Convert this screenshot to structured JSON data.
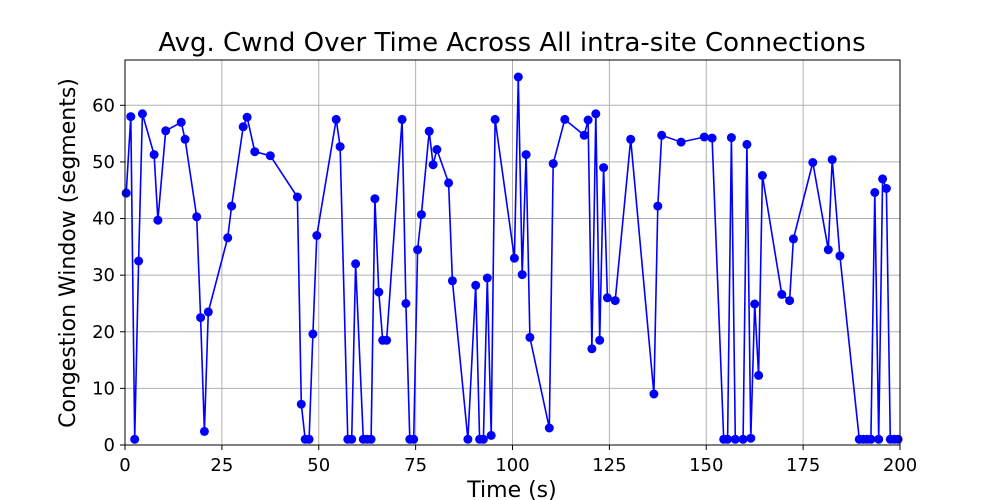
{
  "chart_data": {
    "type": "line",
    "title": "Avg. Cwnd Over Time Across All intra-site Connections",
    "xlabel": "Time (s)",
    "ylabel": "Congestion Window (segments)",
    "xlim": [
      0,
      200
    ],
    "ylim": [
      0,
      68
    ],
    "xticks": [
      0,
      25,
      50,
      75,
      100,
      125,
      150,
      175,
      200
    ],
    "yticks": [
      0,
      10,
      20,
      30,
      40,
      50,
      60
    ],
    "grid": true,
    "color": "#0000ff",
    "marker": "circle",
    "x": [
      0.3,
      1.5,
      2.5,
      3.5,
      4.5,
      7.5,
      8.5,
      10.5,
      14.5,
      15.5,
      18.5,
      19.5,
      20.5,
      21.5,
      26.5,
      27.5,
      30.5,
      31.5,
      33.5,
      37.5,
      44.5,
      45.5,
      46.5,
      47.5,
      48.5,
      49.5,
      54.5,
      55.5,
      57.5,
      58.5,
      59.5,
      61.5,
      62.5,
      63.5,
      64.5,
      65.5,
      66.5,
      67.5,
      71.5,
      72.5,
      73.5,
      74.5,
      75.5,
      76.5,
      78.5,
      79.5,
      80.5,
      83.5,
      84.5,
      88.5,
      90.5,
      91.5,
      92.5,
      93.5,
      94.5,
      95.5,
      100.5,
      101.5,
      102.5,
      103.5,
      104.5,
      109.5,
      110.5,
      113.5,
      118.5,
      119.5,
      120.5,
      121.5,
      122.5,
      123.5,
      124.5,
      126.5,
      130.5,
      136.5,
      137.5,
      138.5,
      143.5,
      149.5,
      151.5,
      154.5,
      155.5,
      156.5,
      157.5,
      159.5,
      160.5,
      161.5,
      162.5,
      163.5,
      164.5,
      169.5,
      171.5,
      172.5,
      177.5,
      181.5,
      182.5,
      184.5,
      189.5,
      190.5,
      191.5,
      192.5,
      193.5,
      194.5,
      195.5,
      196.5,
      197.5,
      198.5,
      199.5
    ],
    "y": [
      44.5,
      58,
      1,
      32.5,
      58.5,
      51.3,
      39.7,
      55.5,
      57,
      54,
      40.3,
      22.5,
      2.4,
      23.5,
      36.6,
      42.2,
      56.2,
      57.9,
      51.8,
      51.1,
      43.8,
      7.2,
      1,
      1,
      19.6,
      37,
      57.5,
      52.7,
      1,
      1,
      32,
      1,
      1,
      1,
      43.5,
      27,
      18.5,
      18.5,
      57.5,
      25,
      1,
      1,
      34.5,
      40.7,
      55.4,
      49.5,
      52.2,
      46.3,
      29,
      1,
      28.2,
      1,
      1,
      29.5,
      1.7,
      57.5,
      33,
      65,
      30.1,
      51.3,
      19,
      3,
      49.7,
      57.5,
      54.7,
      57.4,
      17,
      58.5,
      18.5,
      49,
      26,
      25.5,
      54,
      9,
      42.2,
      54.7,
      53.5,
      54.4,
      54.2,
      1,
      1,
      54.3,
      1,
      1,
      53.1,
      1.2,
      24.9,
      12.3,
      47.6,
      26.6,
      25.5,
      36.4,
      49.9,
      34.5,
      50.4,
      33.4,
      1,
      1,
      1,
      1,
      44.6,
      1,
      47,
      45.3,
      1,
      1,
      1
    ]
  }
}
